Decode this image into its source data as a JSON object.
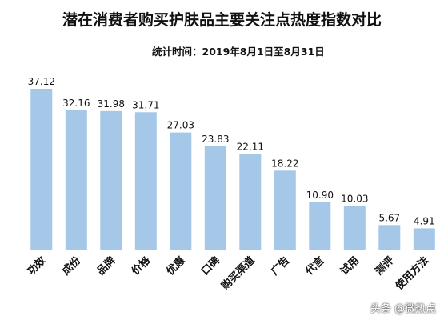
{
  "chart_data": {
    "type": "bar",
    "title": "潜在消费者购买护肤品主要关注点热度指数对比",
    "subtitle": "统计时间：2019年8月1日至8月31日",
    "categories": [
      "功效",
      "成份",
      "品牌",
      "价格",
      "优惠",
      "口碑",
      "购买渠道",
      "广告",
      "代言",
      "试用",
      "测评",
      "使用方法"
    ],
    "values": [
      37.12,
      32.16,
      31.98,
      31.71,
      27.03,
      23.83,
      22.11,
      18.22,
      10.9,
      10.03,
      5.67,
      4.91
    ],
    "value_labels": [
      "37.12",
      "32.16",
      "31.98",
      "31.71",
      "27.03",
      "23.83",
      "22.11",
      "18.22",
      "10.90",
      "10.03",
      "5.67",
      "4.91"
    ],
    "ylim": [
      0,
      37.12
    ],
    "bar_color": "#a6c8e8",
    "axis_color": "#bfbfbf",
    "grid": false,
    "legend": "none"
  },
  "watermark": "头条 @微热点"
}
